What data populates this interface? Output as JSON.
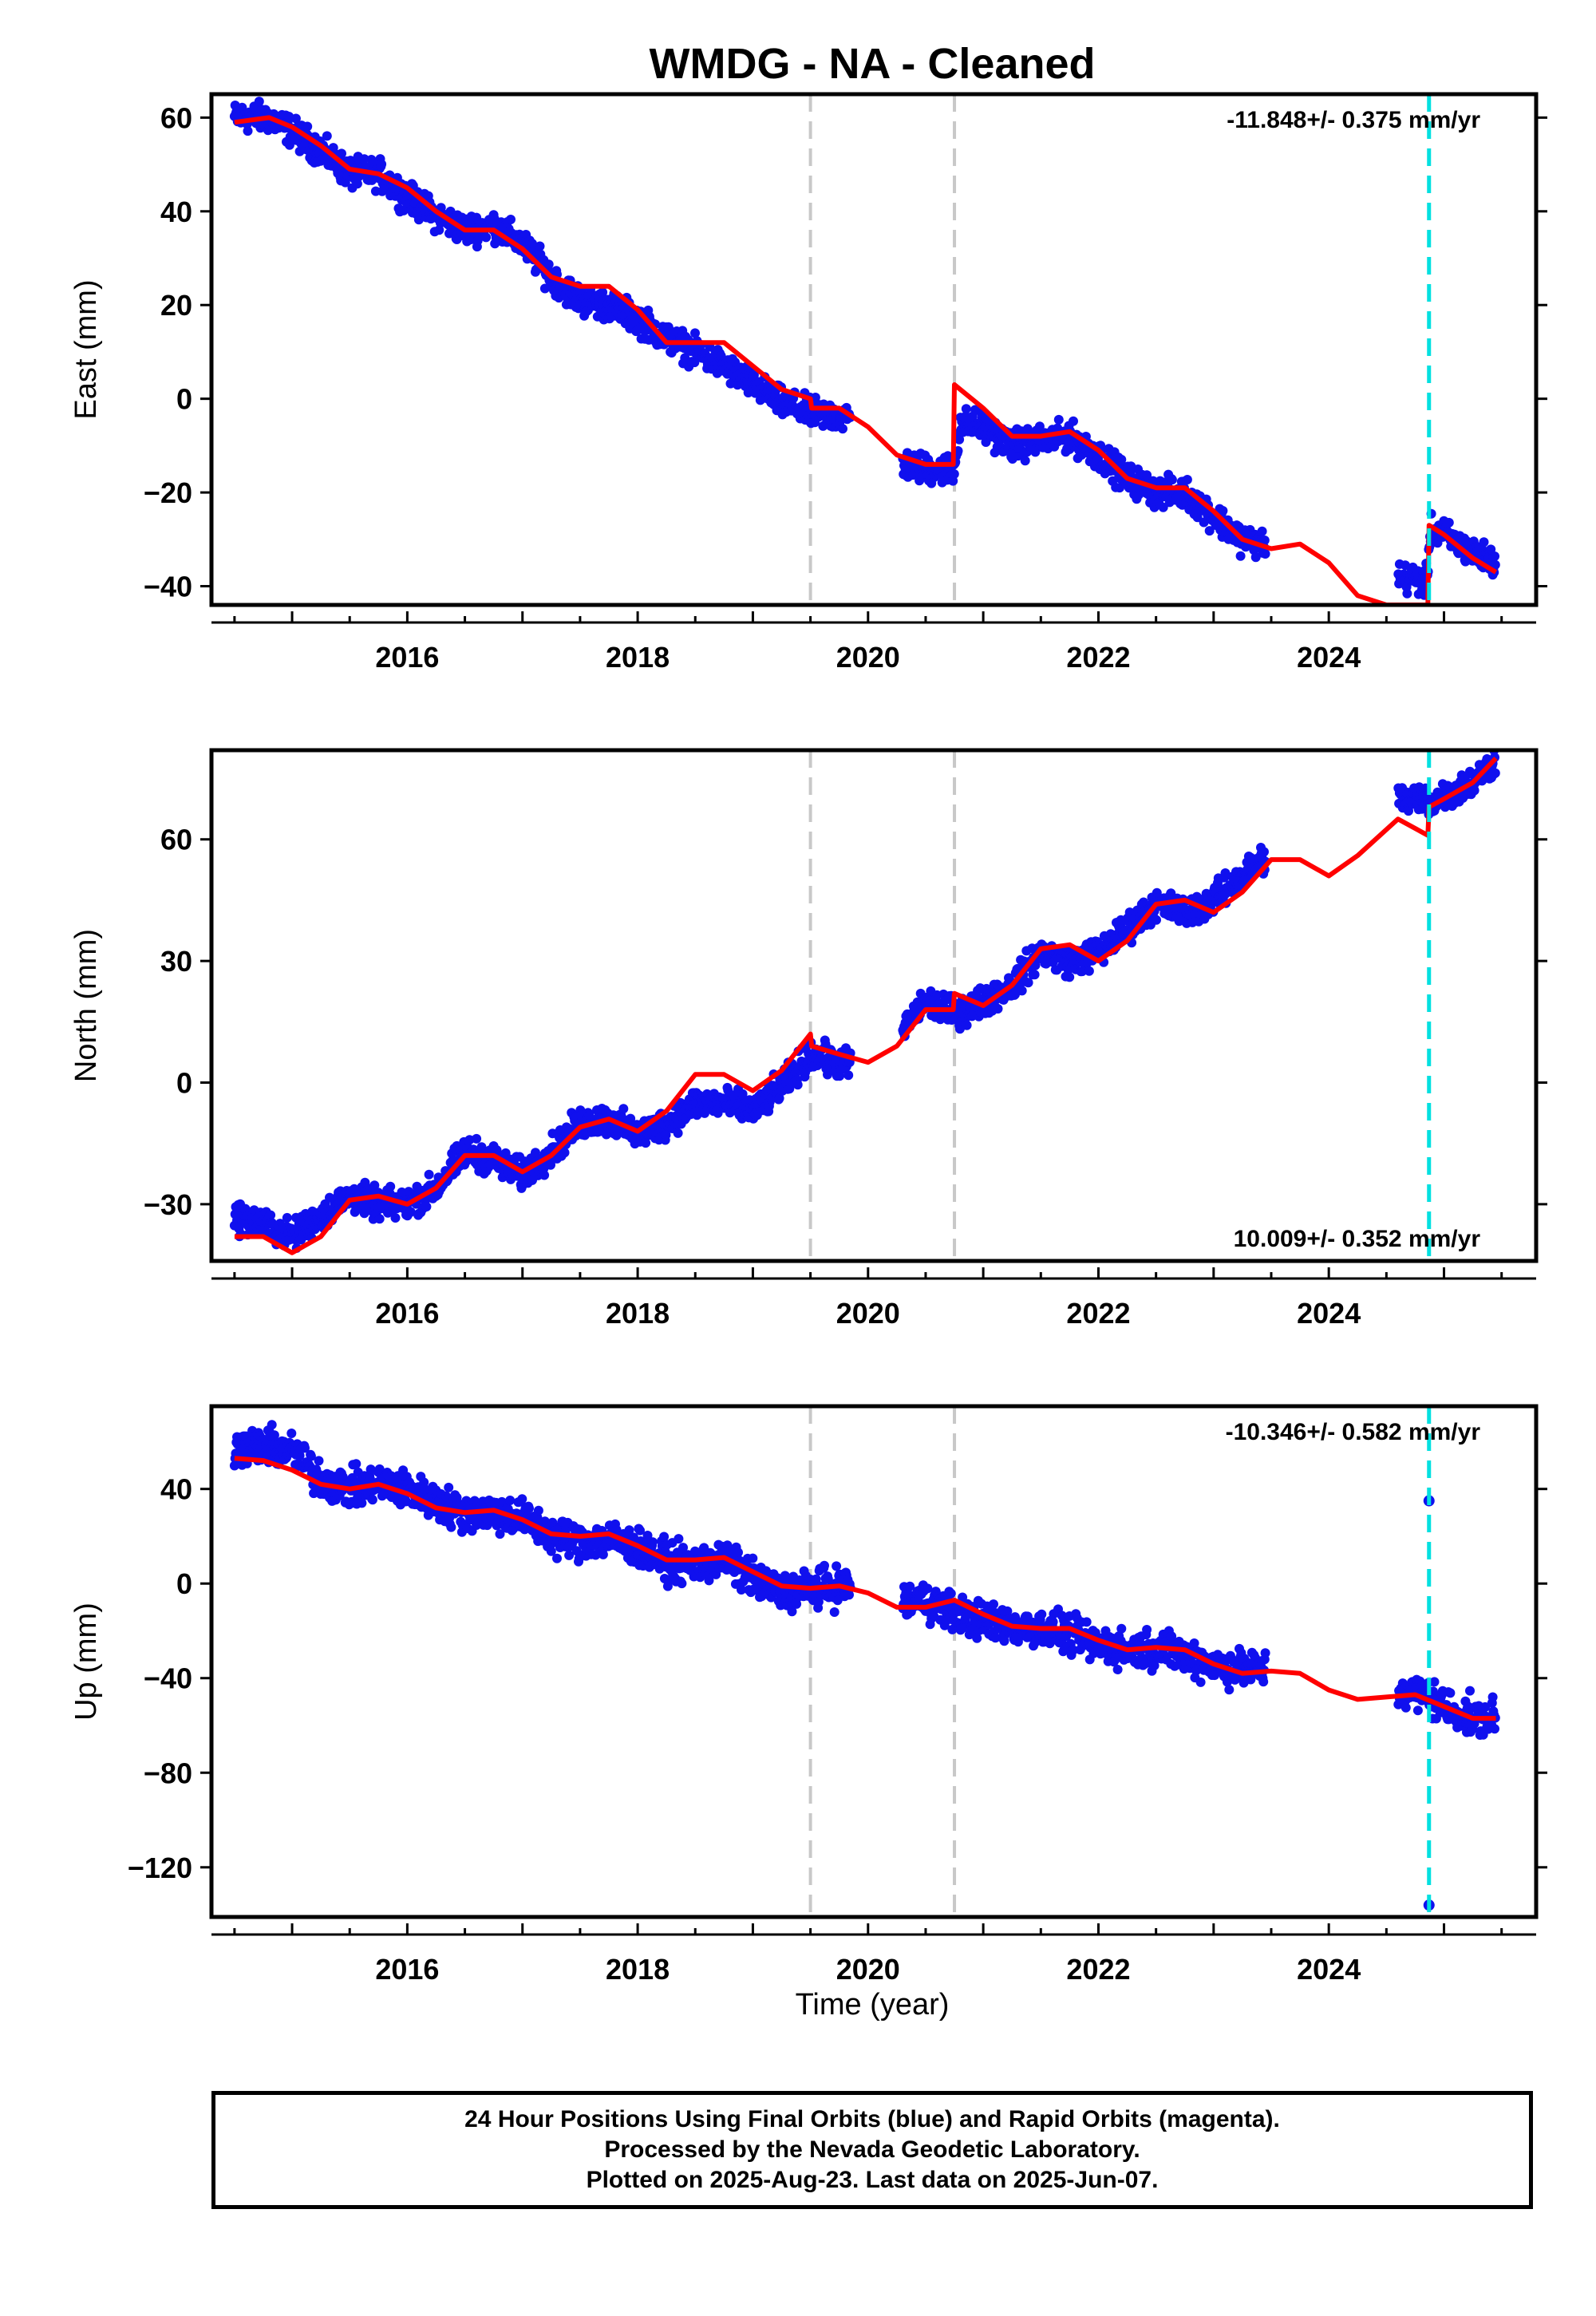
{
  "title": "WMDG  - NA - Cleaned",
  "xlabel": "Time (year)",
  "footer": {
    "line1": "24 Hour Positions Using Final Orbits (blue) and Rapid Orbits (magenta).",
    "line2": "Processed by the Nevada Geodetic Laboratory.",
    "line3": "Plotted on 2025-Aug-23. Last data on 2025-Jun-07."
  },
  "colors": {
    "data": "#1010ee",
    "model": "#ff0000",
    "equipment_change": "#c8c8c8",
    "earthquake": "#00e0e0"
  },
  "chart_data": [
    {
      "type": "scatter",
      "component": "east",
      "ylabel": "East (mm)",
      "rate_label": "-11.848+/- 0.375 mm/yr",
      "rate_position": "top-right",
      "xlim": [
        2014.3,
        2025.8
      ],
      "ylim": [
        -44,
        65
      ],
      "yticks": [
        -40,
        -20,
        0,
        20,
        40,
        60
      ],
      "xticks": [
        2016,
        2018,
        2020,
        2022,
        2024
      ],
      "vlines_gray": [
        2019.5,
        2020.75
      ],
      "vline_cyan": 2024.87,
      "gaps": [
        [
          2019.85,
          2020.3
        ],
        [
          2023.45,
          2024.6
        ]
      ],
      "data_points": [
        [
          2014.5,
          60
        ],
        [
          2014.8,
          60
        ],
        [
          2015.0,
          57
        ],
        [
          2015.25,
          53
        ],
        [
          2015.5,
          48
        ],
        [
          2015.75,
          48
        ],
        [
          2016.0,
          43
        ],
        [
          2016.25,
          39
        ],
        [
          2016.5,
          36
        ],
        [
          2016.75,
          37
        ],
        [
          2017.0,
          33
        ],
        [
          2017.25,
          26
        ],
        [
          2017.5,
          21
        ],
        [
          2017.75,
          20
        ],
        [
          2018.0,
          17
        ],
        [
          2018.25,
          13
        ],
        [
          2018.5,
          10
        ],
        [
          2018.75,
          7
        ],
        [
          2019.0,
          3
        ],
        [
          2019.25,
          -1
        ],
        [
          2019.5,
          -3
        ],
        [
          2019.85,
          -4
        ],
        [
          2020.3,
          -14
        ],
        [
          2020.5,
          -15
        ],
        [
          2020.75,
          -15
        ],
        [
          2020.8,
          -5
        ],
        [
          2021.0,
          -6
        ],
        [
          2021.25,
          -10
        ],
        [
          2021.5,
          -9
        ],
        [
          2021.75,
          -8
        ],
        [
          2022.0,
          -12
        ],
        [
          2022.25,
          -17
        ],
        [
          2022.5,
          -20
        ],
        [
          2022.75,
          -20
        ],
        [
          2023.0,
          -25
        ],
        [
          2023.25,
          -30
        ],
        [
          2023.45,
          -31
        ],
        [
          2024.6,
          -38
        ],
        [
          2024.85,
          -39
        ],
        [
          2024.88,
          -28
        ],
        [
          2025.0,
          -29
        ],
        [
          2025.25,
          -33
        ],
        [
          2025.45,
          -35
        ]
      ],
      "model": [
        [
          2014.5,
          59
        ],
        [
          2014.8,
          60
        ],
        [
          2015.0,
          58
        ],
        [
          2015.25,
          54
        ],
        [
          2015.5,
          49
        ],
        [
          2015.75,
          48
        ],
        [
          2016.0,
          45
        ],
        [
          2016.25,
          40
        ],
        [
          2016.5,
          36
        ],
        [
          2016.75,
          36
        ],
        [
          2017.0,
          32
        ],
        [
          2017.25,
          26
        ],
        [
          2017.5,
          24
        ],
        [
          2017.75,
          24
        ],
        [
          2018.0,
          19
        ],
        [
          2018.25,
          12
        ],
        [
          2018.5,
          12
        ],
        [
          2018.75,
          12
        ],
        [
          2019.0,
          7
        ],
        [
          2019.25,
          2
        ],
        [
          2019.5,
          0
        ],
        [
          2019.51,
          -2
        ],
        [
          2019.75,
          -2
        ],
        [
          2020.0,
          -6
        ],
        [
          2020.25,
          -12
        ],
        [
          2020.5,
          -14
        ],
        [
          2020.74,
          -14
        ],
        [
          2020.75,
          3
        ],
        [
          2021.0,
          -2
        ],
        [
          2021.25,
          -8
        ],
        [
          2021.5,
          -8
        ],
        [
          2021.75,
          -7
        ],
        [
          2022.0,
          -11
        ],
        [
          2022.25,
          -17
        ],
        [
          2022.5,
          -19
        ],
        [
          2022.75,
          -19
        ],
        [
          2023.0,
          -24
        ],
        [
          2023.25,
          -30
        ],
        [
          2023.5,
          -32
        ],
        [
          2023.75,
          -31
        ],
        [
          2024.0,
          -35
        ],
        [
          2024.25,
          -42
        ],
        [
          2024.5,
          -44
        ],
        [
          2024.86,
          -44
        ],
        [
          2024.87,
          -27
        ],
        [
          2025.0,
          -29
        ],
        [
          2025.25,
          -34
        ],
        [
          2025.45,
          -37
        ]
      ]
    },
    {
      "type": "scatter",
      "component": "north",
      "ylabel": "North (mm)",
      "rate_label": "10.009+/- 0.352 mm/yr",
      "rate_position": "bottom-right",
      "xlim": [
        2014.3,
        2025.8
      ],
      "ylim": [
        -44,
        82
      ],
      "yticks": [
        -30,
        0,
        30,
        60
      ],
      "xticks": [
        2016,
        2018,
        2020,
        2022,
        2024
      ],
      "vlines_gray": [
        2019.5,
        2020.75
      ],
      "vline_cyan": 2024.87,
      "gaps": [
        [
          2019.85,
          2020.3
        ],
        [
          2023.45,
          2024.6
        ]
      ],
      "data_points": [
        [
          2014.5,
          -33
        ],
        [
          2014.75,
          -35
        ],
        [
          2015.0,
          -38
        ],
        [
          2015.25,
          -33
        ],
        [
          2015.5,
          -28
        ],
        [
          2015.75,
          -30
        ],
        [
          2016.0,
          -30
        ],
        [
          2016.25,
          -26
        ],
        [
          2016.5,
          -17
        ],
        [
          2016.75,
          -19
        ],
        [
          2017.0,
          -23
        ],
        [
          2017.25,
          -17
        ],
        [
          2017.5,
          -10
        ],
        [
          2017.75,
          -9
        ],
        [
          2018.0,
          -13
        ],
        [
          2018.25,
          -10
        ],
        [
          2018.5,
          -5
        ],
        [
          2018.75,
          -5
        ],
        [
          2019.0,
          -7
        ],
        [
          2019.25,
          -1
        ],
        [
          2019.5,
          7
        ],
        [
          2019.85,
          4
        ],
        [
          2020.3,
          13
        ],
        [
          2020.5,
          20
        ],
        [
          2020.75,
          17
        ],
        [
          2021.0,
          20
        ],
        [
          2021.25,
          24
        ],
        [
          2021.5,
          32
        ],
        [
          2021.75,
          30
        ],
        [
          2022.0,
          32
        ],
        [
          2022.25,
          38
        ],
        [
          2022.5,
          44
        ],
        [
          2022.75,
          42
        ],
        [
          2023.0,
          45
        ],
        [
          2023.25,
          51
        ],
        [
          2023.45,
          56
        ],
        [
          2024.6,
          70
        ],
        [
          2024.85,
          70
        ],
        [
          2024.88,
          69
        ],
        [
          2025.0,
          71
        ],
        [
          2025.25,
          74
        ],
        [
          2025.45,
          80
        ]
      ],
      "model": [
        [
          2014.5,
          -38
        ],
        [
          2014.75,
          -38
        ],
        [
          2015.0,
          -42
        ],
        [
          2015.25,
          -38
        ],
        [
          2015.5,
          -29
        ],
        [
          2015.75,
          -28
        ],
        [
          2016.0,
          -30
        ],
        [
          2016.25,
          -26
        ],
        [
          2016.5,
          -18
        ],
        [
          2016.75,
          -18
        ],
        [
          2017.0,
          -22
        ],
        [
          2017.25,
          -18
        ],
        [
          2017.5,
          -11
        ],
        [
          2017.75,
          -9
        ],
        [
          2018.0,
          -12
        ],
        [
          2018.25,
          -7
        ],
        [
          2018.5,
          2
        ],
        [
          2018.75,
          2
        ],
        [
          2019.0,
          -2
        ],
        [
          2019.25,
          3
        ],
        [
          2019.5,
          12
        ],
        [
          2019.51,
          9
        ],
        [
          2019.75,
          7
        ],
        [
          2020.0,
          5
        ],
        [
          2020.25,
          9
        ],
        [
          2020.5,
          18
        ],
        [
          2020.74,
          18
        ],
        [
          2020.75,
          22
        ],
        [
          2021.0,
          19
        ],
        [
          2021.25,
          24
        ],
        [
          2021.5,
          33
        ],
        [
          2021.75,
          34
        ],
        [
          2022.0,
          30
        ],
        [
          2022.25,
          35
        ],
        [
          2022.5,
          44
        ],
        [
          2022.75,
          45
        ],
        [
          2023.0,
          42
        ],
        [
          2023.25,
          47
        ],
        [
          2023.5,
          55
        ],
        [
          2023.75,
          55
        ],
        [
          2024.0,
          51
        ],
        [
          2024.25,
          56
        ],
        [
          2024.6,
          65
        ],
        [
          2024.86,
          61
        ],
        [
          2024.87,
          68
        ],
        [
          2025.0,
          70
        ],
        [
          2025.25,
          74
        ],
        [
          2025.45,
          80
        ]
      ]
    },
    {
      "type": "scatter",
      "component": "up",
      "ylabel": "Up (mm)",
      "rate_label": "-10.346+/- 0.582 mm/yr",
      "rate_position": "top-right",
      "xlim": [
        2014.3,
        2025.8
      ],
      "ylim": [
        -141,
        75
      ],
      "yticks": [
        -120,
        -80,
        -40,
        0,
        40
      ],
      "xticks": [
        2016,
        2018,
        2020,
        2022,
        2024
      ],
      "vlines_gray": [
        2019.5,
        2020.75
      ],
      "vline_cyan": 2024.87,
      "gaps": [
        [
          2019.85,
          2020.3
        ],
        [
          2023.45,
          2024.6
        ]
      ],
      "outliers": [
        [
          2024.87,
          35
        ],
        [
          2024.87,
          -136
        ]
      ],
      "data_points": [
        [
          2014.5,
          57
        ],
        [
          2014.75,
          58
        ],
        [
          2015.0,
          56
        ],
        [
          2015.25,
          44
        ],
        [
          2015.5,
          40
        ],
        [
          2015.75,
          42
        ],
        [
          2016.0,
          40
        ],
        [
          2016.25,
          34
        ],
        [
          2016.5,
          30
        ],
        [
          2016.75,
          30
        ],
        [
          2017.0,
          28
        ],
        [
          2017.25,
          20
        ],
        [
          2017.5,
          18
        ],
        [
          2017.75,
          19
        ],
        [
          2018.0,
          15
        ],
        [
          2018.25,
          9
        ],
        [
          2018.5,
          8
        ],
        [
          2018.75,
          10
        ],
        [
          2019.0,
          2
        ],
        [
          2019.25,
          -4
        ],
        [
          2019.5,
          -2
        ],
        [
          2019.85,
          -1
        ],
        [
          2020.3,
          -8
        ],
        [
          2020.5,
          -7
        ],
        [
          2020.75,
          -12
        ],
        [
          2021.0,
          -16
        ],
        [
          2021.25,
          -18
        ],
        [
          2021.5,
          -19
        ],
        [
          2021.75,
          -22
        ],
        [
          2022.0,
          -26
        ],
        [
          2022.25,
          -28
        ],
        [
          2022.5,
          -27
        ],
        [
          2022.75,
          -30
        ],
        [
          2023.0,
          -34
        ],
        [
          2023.25,
          -36
        ],
        [
          2023.45,
          -37
        ],
        [
          2024.6,
          -45
        ],
        [
          2024.85,
          -47
        ],
        [
          2025.0,
          -52
        ],
        [
          2025.25,
          -57
        ],
        [
          2025.45,
          -57
        ]
      ],
      "model": [
        [
          2014.5,
          53
        ],
        [
          2014.75,
          52
        ],
        [
          2015.0,
          48
        ],
        [
          2015.25,
          42
        ],
        [
          2015.5,
          40
        ],
        [
          2015.75,
          42
        ],
        [
          2016.0,
          38
        ],
        [
          2016.25,
          32
        ],
        [
          2016.5,
          30
        ],
        [
          2016.75,
          31
        ],
        [
          2017.0,
          27
        ],
        [
          2017.25,
          21
        ],
        [
          2017.5,
          20
        ],
        [
          2017.75,
          21
        ],
        [
          2018.0,
          16
        ],
        [
          2018.25,
          10
        ],
        [
          2018.5,
          10
        ],
        [
          2018.75,
          11
        ],
        [
          2019.0,
          5
        ],
        [
          2019.25,
          -1
        ],
        [
          2019.5,
          -2
        ],
        [
          2019.75,
          -1
        ],
        [
          2020.0,
          -4
        ],
        [
          2020.25,
          -10
        ],
        [
          2020.5,
          -10
        ],
        [
          2020.75,
          -7
        ],
        [
          2021.0,
          -13
        ],
        [
          2021.25,
          -18
        ],
        [
          2021.5,
          -19
        ],
        [
          2021.75,
          -19
        ],
        [
          2022.0,
          -24
        ],
        [
          2022.25,
          -28
        ],
        [
          2022.5,
          -27
        ],
        [
          2022.75,
          -28
        ],
        [
          2023.0,
          -34
        ],
        [
          2023.25,
          -38
        ],
        [
          2023.5,
          -37
        ],
        [
          2023.75,
          -38
        ],
        [
          2024.0,
          -45
        ],
        [
          2024.25,
          -49
        ],
        [
          2024.5,
          -48
        ],
        [
          2024.75,
          -47
        ],
        [
          2025.0,
          -52
        ],
        [
          2025.25,
          -57
        ],
        [
          2025.45,
          -57
        ]
      ]
    }
  ]
}
